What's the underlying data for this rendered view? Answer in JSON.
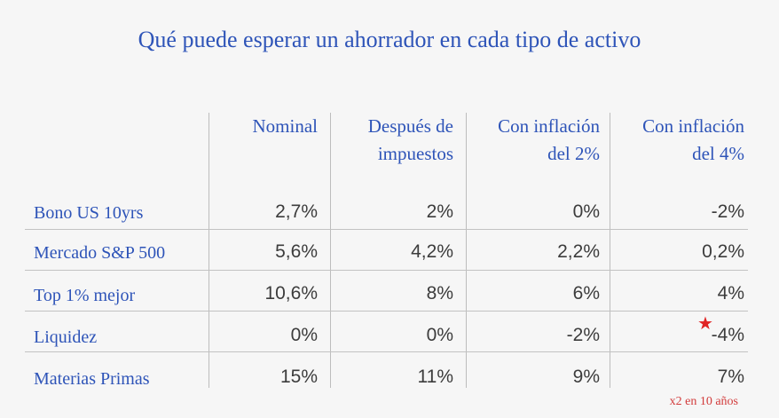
{
  "title": "Qué puede esperar un ahorrador en cada tipo de activo",
  "columns": [
    {
      "line1": "Nominal",
      "line2": ""
    },
    {
      "line1": "Después de",
      "line2": "impuestos"
    },
    {
      "line1": "Con inflación",
      "line2": "del 2%"
    },
    {
      "line1": "Con inflación",
      "line2": "del 4%"
    }
  ],
  "rows": [
    {
      "label": "Bono US 10yrs",
      "values": [
        "2,7%",
        "2%",
        "0%",
        "-2%"
      ]
    },
    {
      "label": "Mercado S&P 500",
      "values": [
        "5,6%",
        "4,2%",
        "2,2%",
        "0,2%"
      ]
    },
    {
      "label": "Top 1% mejor",
      "values": [
        "10,6%",
        "8%",
        "6%",
        "4%"
      ]
    },
    {
      "label": "Liquidez",
      "values": [
        "0%",
        "0%",
        "-2%",
        "-4%"
      ]
    },
    {
      "label": "Materias Primas",
      "values": [
        "15%",
        "11%",
        "9%",
        "7%"
      ]
    }
  ],
  "note": "x2 en 10 años",
  "colors": {
    "accent": "#2e54b8",
    "highlight": "#e02424",
    "note": "#d23b3b"
  },
  "icons": {
    "marker": "star-icon"
  }
}
